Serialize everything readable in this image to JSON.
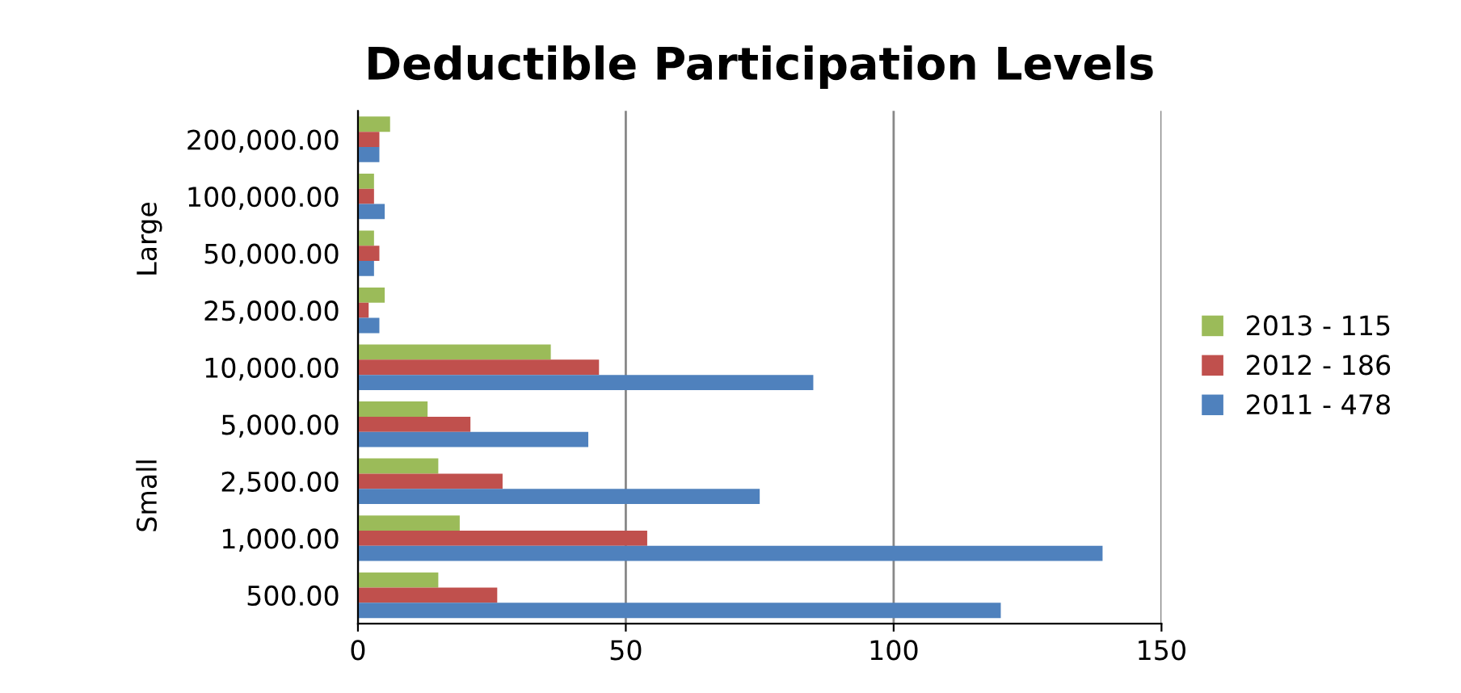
{
  "chart_data": {
    "type": "bar",
    "orientation": "horizontal",
    "title": "Deductible Participation Levels",
    "categories": [
      "200,000.00",
      "100,000.00",
      "50,000.00",
      "25,000.00",
      "10,000.00",
      "5,000.00",
      "2,500.00",
      "1,000.00",
      "500.00"
    ],
    "series": [
      {
        "name": "2013 - 115",
        "color": "#9bbb59",
        "values": [
          6,
          3,
          3,
          5,
          36,
          13,
          15,
          19,
          15
        ]
      },
      {
        "name": "2012 - 186",
        "color": "#c0504d",
        "values": [
          4,
          3,
          4,
          2,
          45,
          21,
          27,
          54,
          26
        ]
      },
      {
        "name": "2011 - 478",
        "color": "#4f81bd",
        "values": [
          4,
          5,
          3,
          4,
          85,
          43,
          75,
          139,
          120
        ]
      }
    ],
    "xlim": [
      0,
      150
    ],
    "xticks": [
      0,
      50,
      100,
      150
    ],
    "grid": "x",
    "legend": "right",
    "annotations": [
      "Large",
      "Small"
    ]
  }
}
